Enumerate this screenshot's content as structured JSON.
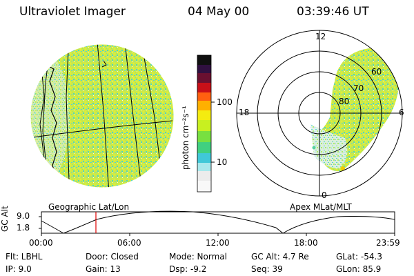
{
  "header": {
    "instrument": "Ultraviolet Imager",
    "date": "04 May 00",
    "time": "03:39:46 UT"
  },
  "left_panel": {
    "caption": "Geographic Lat/Lon"
  },
  "right_panel": {
    "caption": "Apex MLat/MLT",
    "mlt_labels": {
      "top": "12",
      "left": "18",
      "right": "6",
      "bottom": "0"
    },
    "lat_labels": [
      "60",
      "70",
      "80"
    ]
  },
  "colorbar": {
    "unit": "photon cm⁻²s⁻¹",
    "ticks": [
      "100",
      "10"
    ],
    "scale": "log"
  },
  "orbit_plot": {
    "ylabel": "GC Alt",
    "yticks": [
      "9.0",
      "1.8"
    ],
    "xticks": [
      "00:00",
      "06:00",
      "12:00",
      "18:00",
      "23:59"
    ],
    "marker_time": "03:39"
  },
  "info": {
    "flt": "Flt: LBHL",
    "ip": "IP:  9.0",
    "door": "Door: Closed",
    "gain": "Gain: 13",
    "mode": "Mode: Normal",
    "dsp": "Dsp:    -9.2",
    "gcalt": "GC Alt: 4.7 Re",
    "seq": "Seq: 39",
    "glat": "GLat:  -54.3",
    "glon": "GLon:  85.9"
  },
  "colors": {
    "aurora_main": "#c8ec3c",
    "aurora_bright": "#e8f028",
    "aurora_low": "#54d8b0",
    "marker": "#e00000"
  }
}
